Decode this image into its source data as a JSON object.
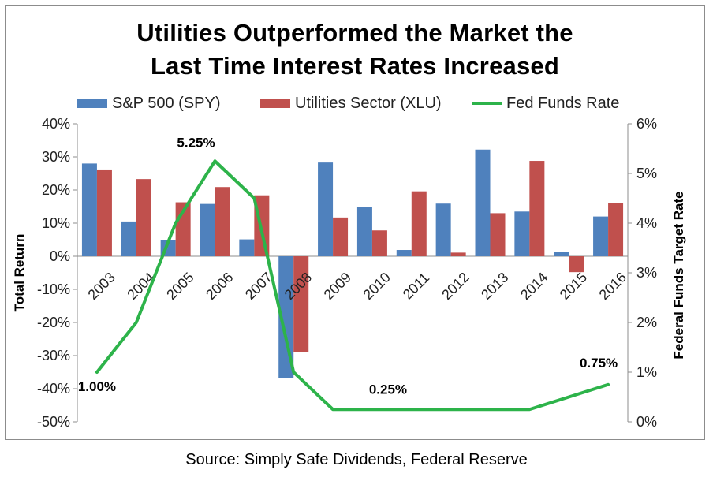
{
  "title_line1": "Utilities Outperformed the Market the",
  "title_line2": "Last Time Interest Rates Increased",
  "source": "Source: Simply Safe Dividends, Federal Reserve",
  "legend": {
    "spy": "S&P 500 (SPY)",
    "xlu": "Utilities Sector (XLU)",
    "fed": "Fed Funds Rate"
  },
  "colors": {
    "spy": "#4f81bd",
    "xlu": "#c0504d",
    "fed": "#2db34a"
  },
  "chart_data": {
    "type": "bar",
    "categories": [
      "2003",
      "2004",
      "2005",
      "2006",
      "2007",
      "2008",
      "2009",
      "2010",
      "2011",
      "2012",
      "2013",
      "2014",
      "2015",
      "2016"
    ],
    "series": [
      {
        "name": "S&P 500 (SPY)",
        "type": "bar",
        "axis": "left",
        "values": [
          28,
          10.5,
          4.8,
          15.8,
          5.1,
          -36.8,
          28.3,
          14.9,
          1.9,
          15.9,
          32.2,
          13.5,
          1.3,
          12
        ]
      },
      {
        "name": "Utilities Sector (XLU)",
        "type": "bar",
        "axis": "left",
        "values": [
          26.2,
          23.3,
          16.3,
          20.9,
          18.4,
          -28.9,
          11.7,
          7.8,
          19.6,
          1.1,
          13,
          28.8,
          -4.8,
          16.1
        ]
      },
      {
        "name": "Fed Funds Rate",
        "type": "line",
        "axis": "right",
        "values": [
          1.0,
          2.0,
          4.0,
          5.25,
          4.5,
          1.0,
          0.25,
          0.25,
          0.25,
          0.25,
          0.25,
          0.25,
          0.5,
          0.75
        ]
      }
    ],
    "data_labels": [
      {
        "text": "1.00%",
        "index": 0
      },
      {
        "text": "5.25%",
        "index": 3
      },
      {
        "text": "0.25%",
        "index": 7
      },
      {
        "text": "0.75%",
        "index": 13
      }
    ],
    "ylabel": "Total Return",
    "y2label": "Federal Funds Target Rate",
    "ylim": [
      -50,
      40
    ],
    "y2lim": [
      0,
      6
    ],
    "yticks": [
      "40%",
      "30%",
      "20%",
      "10%",
      "0%",
      "-10%",
      "-20%",
      "-30%",
      "-40%",
      "-50%"
    ],
    "y2ticks": [
      "6%",
      "5%",
      "4%",
      "3%",
      "2%",
      "1%",
      "0%"
    ],
    "grid": false,
    "legend_position": "top"
  }
}
